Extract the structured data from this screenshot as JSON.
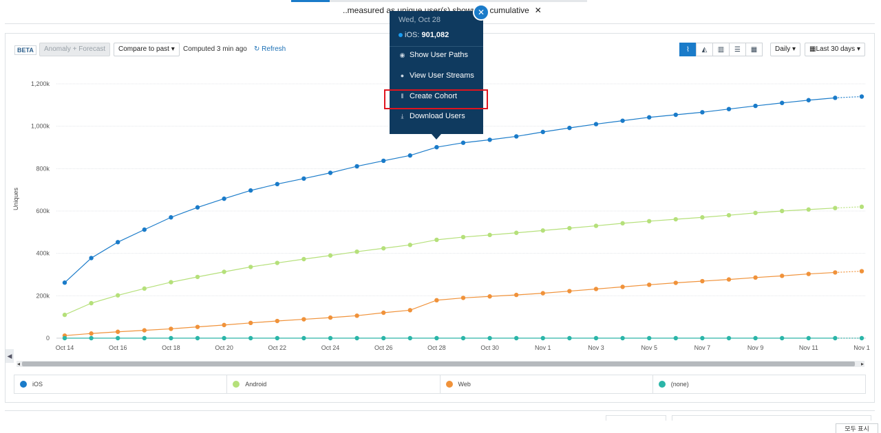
{
  "header": {
    "measured_text": "..measured as unique user(s) shown as cumulative",
    "close_label": "✕"
  },
  "toolbar": {
    "beta_label": "BETA",
    "anomaly_label": "Anomaly + Forecast",
    "compare_label": "Compare to past",
    "computed_label": "Computed 3 min ago",
    "refresh_label": "Refresh",
    "interval_label": "Daily",
    "range_label": "Last 30 days",
    "view_buttons": [
      {
        "name": "line-chart-icon",
        "glyph": "⌇"
      },
      {
        "name": "area-chart-icon",
        "glyph": "◭"
      },
      {
        "name": "bar-chart-icon",
        "glyph": "▥"
      },
      {
        "name": "horizontal-bar-icon",
        "glyph": "☰"
      },
      {
        "name": "stacked-bar-icon",
        "glyph": "▦"
      }
    ]
  },
  "tooltip": {
    "date": "Wed, Oct 28",
    "series": "iOS:",
    "value": "901,082",
    "close_label": "✕",
    "menu": [
      {
        "label": "Show User Paths",
        "icon": "eye-icon",
        "glyph": "◉"
      },
      {
        "label": "View User Streams",
        "icon": "user-icon",
        "glyph": "●"
      },
      {
        "label": "Create Cohort",
        "icon": "cohort-icon",
        "glyph": "⫴"
      },
      {
        "label": "Download Users",
        "icon": "download-icon",
        "glyph": "⤓"
      }
    ]
  },
  "chart_data": {
    "type": "line",
    "ylabel": "Uniques",
    "ylim": [
      0,
      1200000
    ],
    "ytick_values": [
      0,
      200000,
      400000,
      600000,
      800000,
      1000000,
      1200000
    ],
    "ytick_labels": [
      "0",
      "200k",
      "400k",
      "600k",
      "800k",
      "1,000k",
      "1,200k"
    ],
    "xtick_labels": [
      "Oct 14",
      "Oct 16",
      "Oct 18",
      "Oct 20",
      "Oct 22",
      "Oct 24",
      "Oct 26",
      "Oct 28",
      "Oct 30",
      "Nov 1",
      "Nov 3",
      "Nov 5",
      "Nov 7",
      "Nov 9",
      "Nov 11",
      "Nov 1"
    ],
    "x": [
      "Oct 14",
      "Oct 15",
      "Oct 16",
      "Oct 17",
      "Oct 18",
      "Oct 19",
      "Oct 20",
      "Oct 21",
      "Oct 22",
      "Oct 23",
      "Oct 24",
      "Oct 25",
      "Oct 26",
      "Oct 27",
      "Oct 28",
      "Oct 29",
      "Oct 30",
      "Oct 31",
      "Nov 1",
      "Nov 2",
      "Nov 3",
      "Nov 4",
      "Nov 5",
      "Nov 6",
      "Nov 7",
      "Nov 8",
      "Nov 9",
      "Nov 10",
      "Nov 11",
      "Nov 12",
      "Nov 13"
    ],
    "series": [
      {
        "name": "iOS",
        "color": "#1a7bc9",
        "values": [
          262000,
          378000,
          453000,
          512000,
          570000,
          617000,
          658000,
          697000,
          727000,
          753000,
          780000,
          811000,
          837000,
          862000,
          901082,
          922000,
          936000,
          952000,
          973000,
          992000,
          1010000,
          1026000,
          1042000,
          1054000,
          1066000,
          1081000,
          1096000,
          1110000,
          1123000,
          1134000,
          1140000
        ]
      },
      {
        "name": "Android",
        "color": "#b5e07a",
        "values": [
          110000,
          165000,
          202000,
          234000,
          264000,
          289000,
          313000,
          336000,
          355000,
          373000,
          390000,
          408000,
          424000,
          440000,
          464000,
          477000,
          487000,
          497000,
          508000,
          519000,
          530000,
          542000,
          552000,
          561000,
          570000,
          580000,
          591000,
          600000,
          607000,
          614000,
          620000
        ]
      },
      {
        "name": "Web",
        "color": "#f0923a",
        "values": [
          12000,
          22000,
          30000,
          37000,
          44000,
          53000,
          62000,
          72000,
          81000,
          89000,
          97000,
          106000,
          120000,
          132000,
          179000,
          190000,
          197000,
          204000,
          212000,
          222000,
          232000,
          242000,
          252000,
          261000,
          269000,
          277000,
          286000,
          294000,
          303000,
          310000,
          316000
        ]
      },
      {
        "name": "(none)",
        "color": "#2bb5a8",
        "values": [
          0,
          0,
          0,
          0,
          0,
          0,
          0,
          0,
          0,
          0,
          0,
          0,
          0,
          0,
          0,
          0,
          0,
          0,
          0,
          0,
          0,
          0,
          0,
          0,
          0,
          0,
          0,
          0,
          0,
          0,
          0
        ]
      }
    ]
  },
  "legend": [
    {
      "label": "iOS",
      "color": "#1a7bc9"
    },
    {
      "label": "Android",
      "color": "#b5e07a"
    },
    {
      "label": "Web",
      "color": "#f0923a"
    },
    {
      "label": "(none)",
      "color": "#2bb5a8"
    }
  ],
  "footer": {
    "korean_label": "모두 표시"
  }
}
